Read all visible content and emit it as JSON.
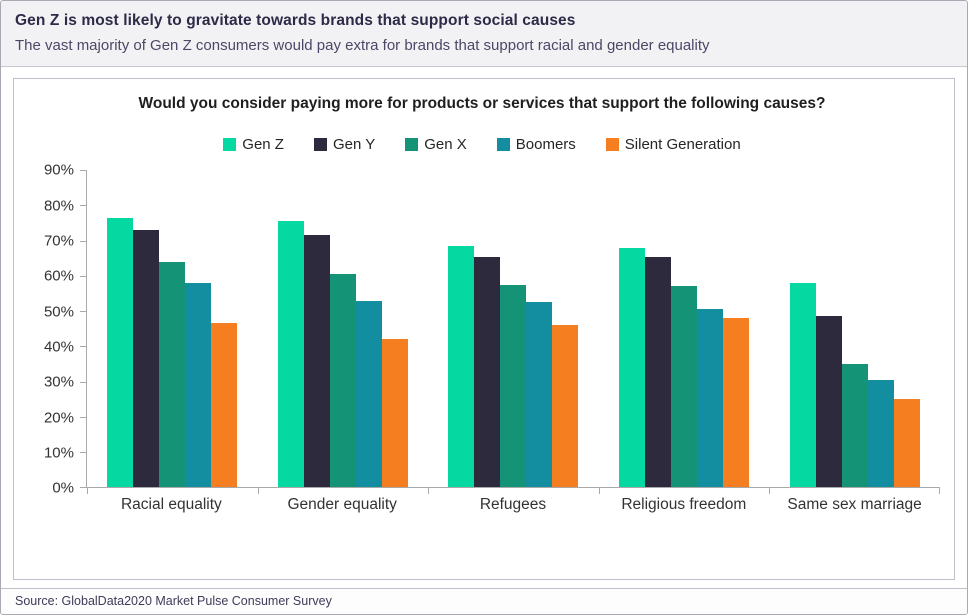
{
  "header": {
    "title": "Gen Z is most likely to gravitate towards brands that support social causes",
    "subtitle": "The vast majority of Gen Z consumers would pay extra for brands that support racial and gender equality"
  },
  "footer": {
    "source": "Source: GlobalData2020 Market Pulse Consumer Survey"
  },
  "chart_data": {
    "type": "bar",
    "title": "Would you consider paying more for products or services that support the following causes?",
    "categories": [
      "Racial equality",
      "Gender equality",
      "Refugees",
      "Religious freedom",
      "Same sex marriage"
    ],
    "series": [
      {
        "name": "Gen Z",
        "color": "#05d8a0",
        "values": [
          76.5,
          75.5,
          68.5,
          68.0,
          58.0
        ]
      },
      {
        "name": "Gen Y",
        "color": "#2e2a3e",
        "values": [
          73.0,
          71.5,
          65.5,
          65.5,
          48.5
        ]
      },
      {
        "name": "Gen X",
        "color": "#159377",
        "values": [
          64.0,
          60.5,
          57.5,
          57.0,
          35.0
        ]
      },
      {
        "name": "Boomers",
        "color": "#128ea0",
        "values": [
          58.0,
          53.0,
          52.5,
          50.5,
          30.5
        ]
      },
      {
        "name": "Silent Generation",
        "color": "#f57e20",
        "values": [
          46.5,
          42.0,
          46.0,
          48.0,
          25.0
        ]
      }
    ],
    "axis": {
      "ymin": 0,
      "ymax": 90,
      "step": 10,
      "tick_format": "percent"
    },
    "legend_position": "top",
    "grid": false
  }
}
